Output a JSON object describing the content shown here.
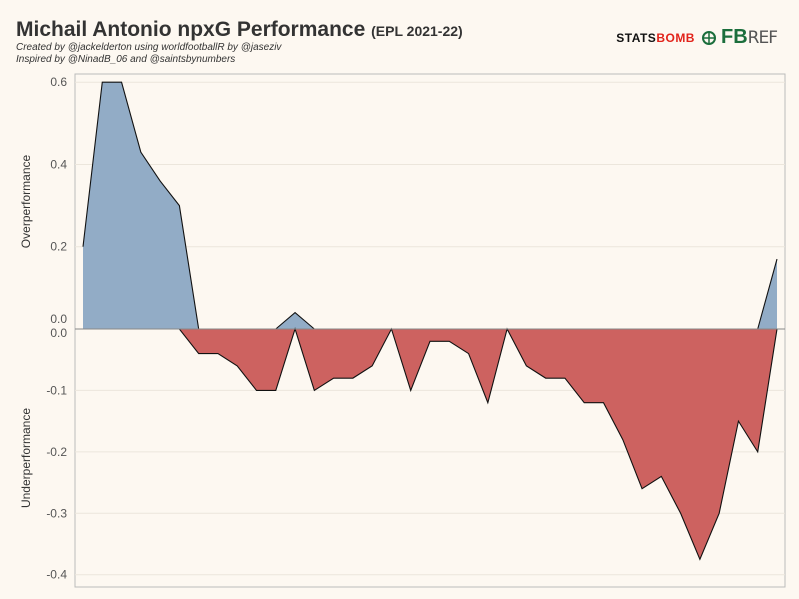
{
  "header": {
    "title": "Michail Antonio npxG Performance",
    "season": "(EPL 2021-22)",
    "credit_line1": "Created by @jackelderton using worldfootballR by @jaseziv",
    "credit_line2": "Inspired by @NinadB_06 and @saintsbynumbers"
  },
  "logos": {
    "statsbomb_a": "STATS",
    "statsbomb_b": "BOMB",
    "fbref_a": "FB",
    "fbref_b": "REF"
  },
  "colors": {
    "over": "#92acc6",
    "under": "#cd6260",
    "background": "#fdf8f1"
  },
  "chart_data": [
    {
      "type": "area",
      "panel": "top",
      "ylabel": "Overperformance",
      "ylim": [
        0,
        0.62
      ],
      "yticks": [
        "0.0",
        "0.2",
        "0.4",
        "0.6"
      ],
      "x": [
        0,
        1,
        2,
        3,
        4,
        5,
        6,
        7,
        8,
        9,
        10,
        11,
        12,
        13,
        14,
        15,
        16,
        17,
        18,
        19,
        20,
        21,
        22,
        23,
        24,
        25,
        26,
        27,
        28,
        29,
        30,
        31,
        32,
        33,
        34,
        35,
        36
      ],
      "values": [
        0.2,
        0.6,
        0.6,
        0.43,
        0.36,
        0.3,
        0.0,
        0.0,
        0.0,
        0.0,
        0.0,
        0.04,
        0.0,
        0.0,
        0.0,
        0.0,
        0.0,
        0.0,
        0.0,
        0.0,
        0.0,
        0.0,
        0.0,
        0.0,
        0.0,
        0.0,
        0.0,
        0.0,
        0.0,
        0.0,
        0.0,
        0.0,
        0.0,
        0.0,
        0.0,
        0.0,
        0.17
      ]
    },
    {
      "type": "area",
      "panel": "bottom",
      "ylabel": "Underperformance",
      "ylim": [
        -0.42,
        0.0
      ],
      "yticks": [
        "0.0",
        "-0.1",
        "-0.2",
        "-0.3",
        "-0.4"
      ],
      "x": [
        0,
        1,
        2,
        3,
        4,
        5,
        6,
        7,
        8,
        9,
        10,
        11,
        12,
        13,
        14,
        15,
        16,
        17,
        18,
        19,
        20,
        21,
        22,
        23,
        24,
        25,
        26,
        27,
        28,
        29,
        30,
        31,
        32,
        33,
        34,
        35,
        36
      ],
      "values": [
        0.0,
        0.0,
        0.0,
        0.0,
        0.0,
        0.0,
        -0.04,
        -0.04,
        -0.06,
        -0.1,
        -0.1,
        0.0,
        -0.1,
        -0.08,
        -0.08,
        -0.06,
        0.0,
        -0.1,
        -0.02,
        -0.02,
        -0.04,
        -0.12,
        0.0,
        -0.06,
        -0.08,
        -0.08,
        -0.12,
        -0.12,
        -0.18,
        -0.26,
        -0.24,
        -0.3,
        -0.375,
        -0.3,
        -0.15,
        -0.2,
        0.0
      ]
    }
  ]
}
